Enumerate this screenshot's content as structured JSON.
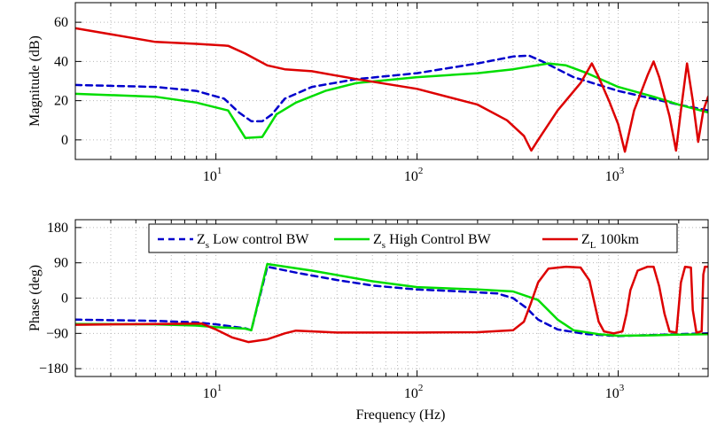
{
  "chart_data": [
    {
      "type": "line",
      "id": "magnitude",
      "title": "",
      "xlabel": "",
      "ylabel": "Magnitude (dB)",
      "xscale": "log",
      "xlim": [
        2,
        2800
      ],
      "ylim": [
        -10,
        70
      ],
      "grid": true,
      "xticks": [
        {
          "value": 10,
          "base": "10",
          "exp": "1"
        },
        {
          "value": 100,
          "base": "10",
          "exp": "2"
        },
        {
          "value": 1000,
          "base": "10",
          "exp": "3"
        }
      ],
      "yticks": [
        {
          "value": 0,
          "label": "0"
        },
        {
          "value": 20,
          "label": "20"
        },
        {
          "value": 40,
          "label": "40"
        },
        {
          "value": 60,
          "label": "60"
        }
      ],
      "series": [
        {
          "key": "zs-low",
          "color": "#0000cc",
          "dash": true,
          "points": [
            [
              2,
              28
            ],
            [
              5,
              27
            ],
            [
              8,
              25
            ],
            [
              11,
              21
            ],
            [
              13,
              14
            ],
            [
              15,
              9.5
            ],
            [
              17,
              9.5
            ],
            [
              19,
              13
            ],
            [
              22,
              21
            ],
            [
              30,
              27
            ],
            [
              50,
              31
            ],
            [
              100,
              34
            ],
            [
              200,
              39
            ],
            [
              300,
              42.5
            ],
            [
              360,
              43
            ],
            [
              420,
              40
            ],
            [
              600,
              32
            ],
            [
              1000,
              25
            ],
            [
              2000,
              18
            ],
            [
              2800,
              15
            ]
          ]
        },
        {
          "key": "zs-high",
          "color": "#00dd00",
          "dash": false,
          "points": [
            [
              2,
              23.5
            ],
            [
              5,
              22
            ],
            [
              8,
              19
            ],
            [
              11.5,
              15
            ],
            [
              14,
              1
            ],
            [
              17,
              1.5
            ],
            [
              20,
              13
            ],
            [
              25,
              19
            ],
            [
              35,
              25
            ],
            [
              50,
              29
            ],
            [
              100,
              32
            ],
            [
              200,
              34
            ],
            [
              300,
              36
            ],
            [
              450,
              39
            ],
            [
              550,
              38
            ],
            [
              700,
              34
            ],
            [
              1000,
              27
            ],
            [
              1500,
              22
            ],
            [
              2000,
              18
            ],
            [
              2800,
              14
            ]
          ]
        },
        {
          "key": "zl",
          "color": "#dd0000",
          "dash": false,
          "points": [
            [
              2,
              57
            ],
            [
              5,
              50
            ],
            [
              8,
              49
            ],
            [
              11.5,
              48
            ],
            [
              14,
              44
            ],
            [
              18,
              38
            ],
            [
              22,
              36
            ],
            [
              30,
              35
            ],
            [
              50,
              31
            ],
            [
              100,
              26
            ],
            [
              200,
              18
            ],
            [
              280,
              10
            ],
            [
              340,
              2
            ],
            [
              370,
              -5.5
            ],
            [
              400,
              0
            ],
            [
              500,
              15
            ],
            [
              650,
              29
            ],
            [
              740,
              39
            ],
            [
              800,
              32
            ],
            [
              900,
              20
            ],
            [
              1000,
              8
            ],
            [
              1080,
              -6
            ],
            [
              1200,
              15
            ],
            [
              1400,
              33
            ],
            [
              1500,
              40
            ],
            [
              1600,
              32
            ],
            [
              1800,
              12
            ],
            [
              1940,
              -5.5
            ],
            [
              2050,
              15
            ],
            [
              2200,
              39
            ],
            [
              2350,
              20
            ],
            [
              2500,
              -1
            ],
            [
              2650,
              15
            ],
            [
              2800,
              22
            ]
          ]
        }
      ]
    },
    {
      "type": "line",
      "id": "phase",
      "title": "",
      "xlabel": "Frequency (Hz)",
      "ylabel": "Phase (deg)",
      "xscale": "log",
      "xlim": [
        2,
        2800
      ],
      "ylim": [
        -200,
        200
      ],
      "grid": true,
      "xticks": [
        {
          "value": 10,
          "base": "10",
          "exp": "1"
        },
        {
          "value": 100,
          "base": "10",
          "exp": "2"
        },
        {
          "value": 1000,
          "base": "10",
          "exp": "3"
        }
      ],
      "yticks": [
        {
          "value": -180,
          "label": "−180"
        },
        {
          "value": -90,
          "label": "−90"
        },
        {
          "value": 0,
          "label": "0"
        },
        {
          "value": 90,
          "label": "90"
        },
        {
          "value": 180,
          "label": "180"
        }
      ],
      "legend": {
        "placement": "top-center",
        "entries": [
          {
            "key": "zs-low",
            "text": "Z",
            "sub": "s",
            "suffix": " Low control BW"
          },
          {
            "key": "zs-high",
            "text": "Z",
            "sub": "s",
            "suffix": " High Control BW"
          },
          {
            "key": "zl",
            "text": "Z",
            "sub": "L",
            "suffix": " 100km"
          }
        ]
      },
      "series": [
        {
          "key": "zs-low",
          "color": "#0000cc",
          "dash": true,
          "points": [
            [
              2,
              -55
            ],
            [
              5,
              -58
            ],
            [
              8,
              -62
            ],
            [
              10,
              -67
            ],
            [
              14,
              -77
            ],
            [
              15,
              -82
            ],
            [
              18,
              80
            ],
            [
              25,
              65
            ],
            [
              40,
              46
            ],
            [
              60,
              32
            ],
            [
              100,
              22
            ],
            [
              150,
              18
            ],
            [
              250,
              12
            ],
            [
              300,
              0
            ],
            [
              350,
              -25
            ],
            [
              400,
              -55
            ],
            [
              500,
              -80
            ],
            [
              700,
              -92
            ],
            [
              1000,
              -97
            ],
            [
              1500,
              -94
            ],
            [
              2000,
              -92
            ],
            [
              2800,
              -90
            ]
          ]
        },
        {
          "key": "zs-high",
          "color": "#00dd00",
          "dash": false,
          "points": [
            [
              2,
              -66
            ],
            [
              5,
              -67
            ],
            [
              8,
              -70
            ],
            [
              10,
              -74
            ],
            [
              14,
              -78
            ],
            [
              15,
              -82
            ],
            [
              18,
              87
            ],
            [
              30,
              70
            ],
            [
              60,
              43
            ],
            [
              100,
              28
            ],
            [
              200,
              22
            ],
            [
              300,
              17
            ],
            [
              400,
              -5
            ],
            [
              500,
              -55
            ],
            [
              600,
              -82
            ],
            [
              800,
              -92
            ],
            [
              1000,
              -96
            ],
            [
              1500,
              -95
            ],
            [
              2000,
              -93
            ],
            [
              2800,
              -92
            ]
          ]
        },
        {
          "key": "zl",
          "color": "#dd0000",
          "dash": false,
          "points": [
            [
              2,
              -68
            ],
            [
              5,
              -66
            ],
            [
              8.5,
              -65
            ],
            [
              10,
              -80
            ],
            [
              12,
              -100
            ],
            [
              14.5,
              -112
            ],
            [
              18,
              -105
            ],
            [
              22,
              -90
            ],
            [
              25,
              -83
            ],
            [
              40,
              -88
            ],
            [
              100,
              -88
            ],
            [
              200,
              -87
            ],
            [
              300,
              -82
            ],
            [
              340,
              -60
            ],
            [
              370,
              -10
            ],
            [
              400,
              40
            ],
            [
              450,
              75
            ],
            [
              550,
              80
            ],
            [
              650,
              78
            ],
            [
              720,
              45
            ],
            [
              760,
              -10
            ],
            [
              800,
              -60
            ],
            [
              850,
              -85
            ],
            [
              950,
              -90
            ],
            [
              1050,
              -85
            ],
            [
              1100,
              -40
            ],
            [
              1150,
              20
            ],
            [
              1250,
              70
            ],
            [
              1400,
              80
            ],
            [
              1500,
              80
            ],
            [
              1600,
              30
            ],
            [
              1700,
              -40
            ],
            [
              1800,
              -85
            ],
            [
              1950,
              -88
            ],
            [
              2050,
              40
            ],
            [
              2150,
              80
            ],
            [
              2300,
              78
            ],
            [
              2350,
              -30
            ],
            [
              2450,
              -88
            ],
            [
              2600,
              -85
            ],
            [
              2650,
              60
            ],
            [
              2700,
              80
            ],
            [
              2800,
              80
            ]
          ]
        }
      ]
    }
  ]
}
